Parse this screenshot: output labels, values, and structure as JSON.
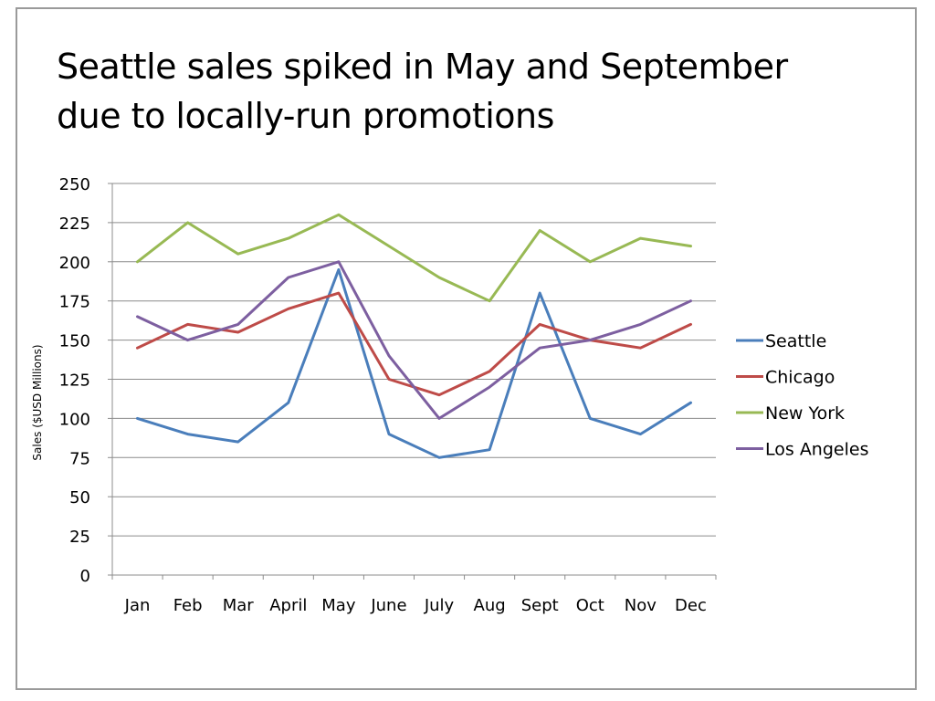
{
  "slide": {
    "title_line1": "Seattle sales spiked in May and September",
    "title_line2": "due to locally-run promotions"
  },
  "chart_data": {
    "type": "line",
    "title": "Seattle sales spiked in May and September due to locally-run promotions",
    "ylabel": "Sales ($USD Millions)",
    "xlabel": "",
    "categories": [
      "Jan",
      "Feb",
      "Mar",
      "April",
      "May",
      "June",
      "July",
      "Aug",
      "Sept",
      "Oct",
      "Nov",
      "Dec"
    ],
    "ylim": [
      0,
      250
    ],
    "yticks": [
      0,
      25,
      50,
      75,
      100,
      125,
      150,
      175,
      200,
      225,
      250
    ],
    "grid": true,
    "legend_position": "right",
    "series": [
      {
        "name": "Seattle",
        "color": "#4a7ebb",
        "values": [
          100,
          90,
          85,
          110,
          195,
          90,
          75,
          80,
          180,
          100,
          90,
          110
        ]
      },
      {
        "name": "Chicago",
        "color": "#be4b48",
        "values": [
          145,
          160,
          155,
          170,
          180,
          125,
          115,
          130,
          160,
          150,
          145,
          160
        ]
      },
      {
        "name": "New York",
        "color": "#98b954",
        "values": [
          200,
          225,
          205,
          215,
          230,
          210,
          190,
          175,
          220,
          200,
          215,
          210
        ]
      },
      {
        "name": "Los Angeles",
        "color": "#7d5fa0",
        "values": [
          165,
          150,
          160,
          190,
          200,
          140,
          100,
          120,
          145,
          150,
          160,
          175
        ]
      }
    ]
  }
}
